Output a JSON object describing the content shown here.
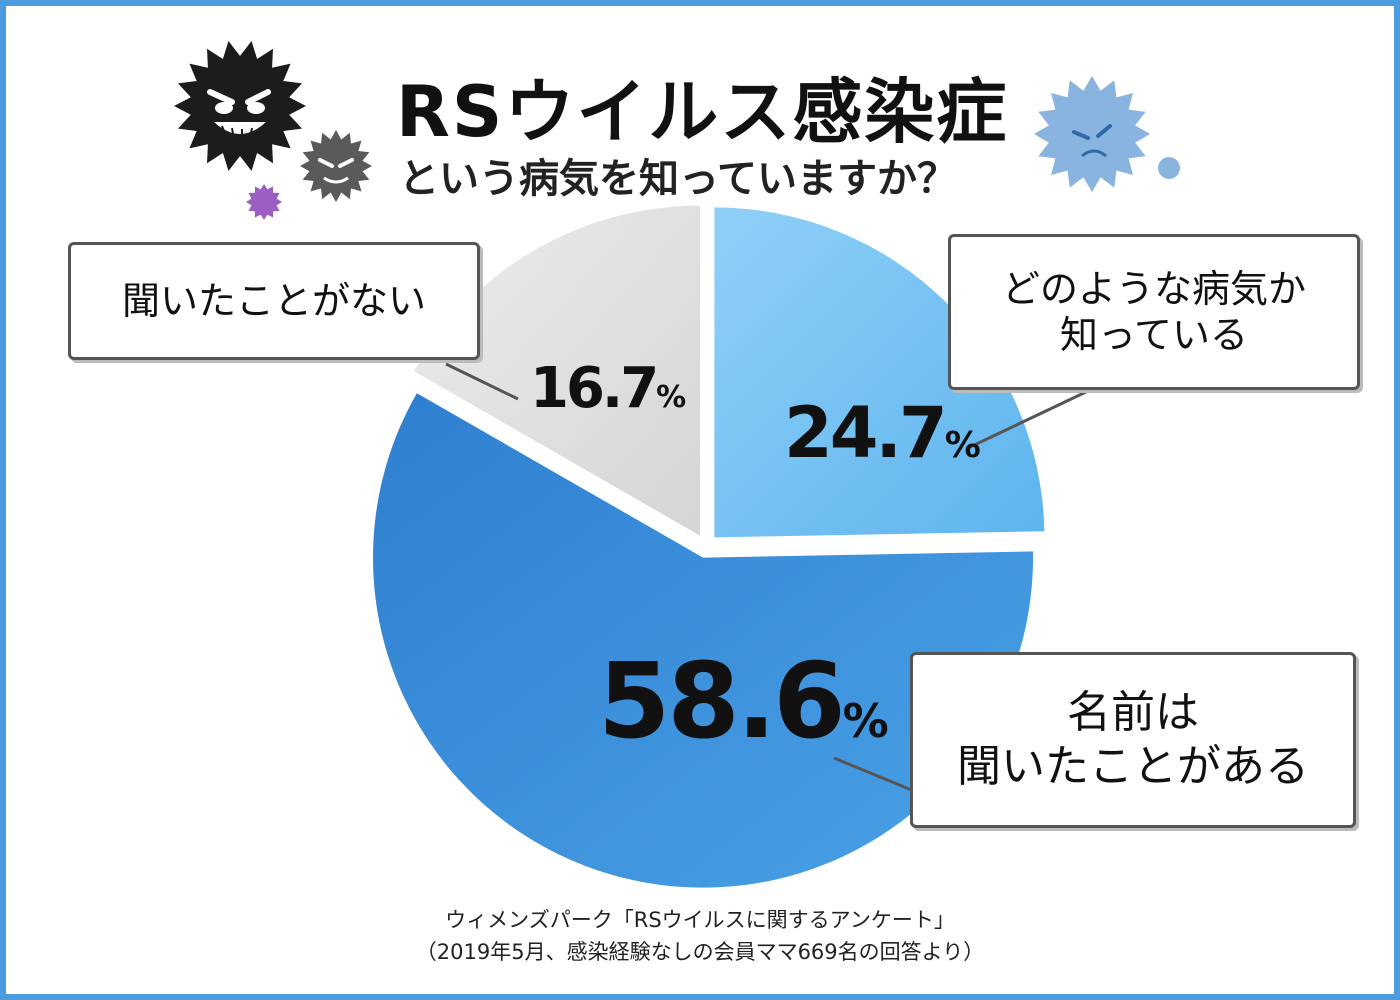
{
  "chart_data": {
    "type": "pie",
    "title": "RSウイルス感染症",
    "subtitle": "という病気を知っていますか？",
    "unit": "%",
    "slices": [
      {
        "label_lines": [
          "どのような病気か",
          "知っている"
        ],
        "value": 24.7,
        "value_text": "24.7",
        "color": "#72c0f0"
      },
      {
        "label_lines": [
          "名前は",
          "聞いたことがある"
        ],
        "value": 58.6,
        "value_text": "58.6",
        "color": "#3a8fdc"
      },
      {
        "label_lines": [
          "聞いたことがない"
        ],
        "value": 16.7,
        "value_text": "16.7",
        "color": "#e0dfdf"
      }
    ]
  },
  "source": {
    "line1": "ウィメンズパーク「RSウイルスに関するアンケート」",
    "line2": "（2019年5月、感染経験なしの会員ママ669名の回答より）"
  },
  "colors": {
    "frame": "#4a9be0",
    "virus_dark": "#1c1c1c",
    "virus_gray": "#5a5a5a",
    "virus_purple": "#9b5fc4",
    "virus_blue": "#8ab4e0"
  },
  "icons": [
    "virus-dark-icon",
    "virus-gray-icon",
    "virus-purple-icon",
    "virus-blue-icon",
    "virus-dot-icon"
  ]
}
